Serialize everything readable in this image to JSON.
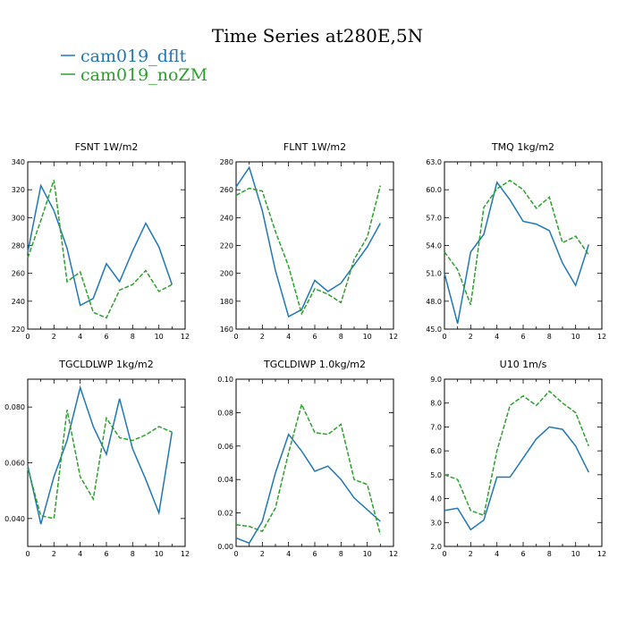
{
  "figure_title": "Time Series at280E,5N",
  "colors": {
    "dflt": "#1f77b4",
    "noZM": "#2ca02c"
  },
  "legend": [
    {
      "label": "cam019_dflt",
      "series": "dflt"
    },
    {
      "label": "cam019_noZM",
      "series": "noZM"
    }
  ],
  "chart_data": [
    {
      "type": "line",
      "title": "FSNT   1W/m2",
      "x": [
        0,
        1,
        2,
        3,
        4,
        5,
        6,
        7,
        8,
        9,
        10,
        11
      ],
      "xlim": [
        0,
        12
      ],
      "xticks": [
        0,
        2,
        4,
        6,
        8,
        10,
        12
      ],
      "ylim": [
        220,
        340
      ],
      "yticks": [
        220,
        240,
        260,
        280,
        300,
        320,
        340
      ],
      "ytick_labels": [
        "220",
        "240",
        "260",
        "280",
        "300",
        "320",
        "340"
      ],
      "series": [
        {
          "name": "cam019_dflt",
          "style": "solid",
          "color": "#1f77b4",
          "values": [
            275,
            323,
            305,
            278,
            237,
            242,
            267,
            254,
            276,
            296,
            279,
            252
          ]
        },
        {
          "name": "cam019_noZM",
          "style": "dashed",
          "color": "#2ca02c",
          "values": [
            271,
            298,
            327,
            254,
            261,
            232,
            228,
            248,
            252,
            262,
            247,
            252
          ]
        }
      ]
    },
    {
      "type": "line",
      "title": "FLNT   1W/m2",
      "x": [
        0,
        1,
        2,
        3,
        4,
        5,
        6,
        7,
        8,
        9,
        10,
        11
      ],
      "xlim": [
        0,
        12
      ],
      "xticks": [
        0,
        2,
        4,
        6,
        8,
        10,
        12
      ],
      "ylim": [
        160,
        280
      ],
      "yticks": [
        160,
        180,
        200,
        220,
        240,
        260,
        280
      ],
      "ytick_labels": [
        "160",
        "180",
        "200",
        "220",
        "240",
        "260",
        "280"
      ],
      "series": [
        {
          "name": "cam019_dflt",
          "style": "solid",
          "color": "#1f77b4",
          "values": [
            262,
            276,
            245,
            202,
            169,
            174,
            195,
            187,
            193,
            206,
            219,
            236
          ]
        },
        {
          "name": "cam019_noZM",
          "style": "dashed",
          "color": "#2ca02c",
          "values": [
            256,
            261,
            259,
            230,
            205,
            171,
            189,
            185,
            179,
            210,
            226,
            263
          ]
        }
      ]
    },
    {
      "type": "line",
      "title": "TMQ   1kg/m2",
      "x": [
        0,
        1,
        2,
        3,
        4,
        5,
        6,
        7,
        8,
        9,
        10,
        11
      ],
      "xlim": [
        0,
        12
      ],
      "xticks": [
        0,
        2,
        4,
        6,
        8,
        10,
        12
      ],
      "ylim": [
        45,
        63
      ],
      "yticks": [
        45,
        48,
        51,
        54,
        57,
        60,
        63
      ],
      "ytick_labels": [
        "45.0",
        "48.0",
        "51.0",
        "54.0",
        "57.0",
        "60.0",
        "63.0"
      ],
      "series": [
        {
          "name": "cam019_dflt",
          "style": "solid",
          "color": "#1f77b4",
          "values": [
            51.0,
            45.6,
            53.3,
            55.2,
            60.8,
            58.9,
            56.6,
            56.3,
            55.6,
            52.1,
            49.7,
            54.1
          ]
        },
        {
          "name": "cam019_noZM",
          "style": "dashed",
          "color": "#2ca02c",
          "values": [
            53.3,
            51.4,
            47.6,
            58.1,
            60.1,
            61.0,
            60.0,
            58.0,
            59.2,
            54.3,
            55.0,
            53.0
          ]
        }
      ]
    },
    {
      "type": "line",
      "title": "TGCLDLWP   1kg/m2",
      "x": [
        0,
        1,
        2,
        3,
        4,
        5,
        6,
        7,
        8,
        9,
        10,
        11
      ],
      "xlim": [
        0,
        12
      ],
      "xticks": [
        0,
        2,
        4,
        6,
        8,
        10,
        12
      ],
      "ylim": [
        0.03,
        0.09
      ],
      "yticks": [
        0.04,
        0.06,
        0.08
      ],
      "ytick_labels": [
        "0.040",
        "0.060",
        "0.080"
      ],
      "series": [
        {
          "name": "cam019_dflt",
          "style": "solid",
          "color": "#1f77b4",
          "values": [
            0.059,
            0.038,
            0.055,
            0.068,
            0.087,
            0.073,
            0.063,
            0.083,
            0.065,
            0.054,
            0.042,
            0.071
          ]
        },
        {
          "name": "cam019_noZM",
          "style": "dashed",
          "color": "#2ca02c",
          "values": [
            0.058,
            0.041,
            0.04,
            0.079,
            0.055,
            0.047,
            0.076,
            0.069,
            0.068,
            0.07,
            0.073,
            0.071
          ]
        }
      ]
    },
    {
      "type": "line",
      "title": "TGCLDIWP   1.0kg/m2",
      "x": [
        0,
        1,
        2,
        3,
        4,
        5,
        6,
        7,
        8,
        9,
        10,
        11
      ],
      "xlim": [
        0,
        12
      ],
      "xticks": [
        0,
        2,
        4,
        6,
        8,
        10,
        12
      ],
      "ylim": [
        0.0,
        0.1
      ],
      "yticks": [
        0.0,
        0.02,
        0.04,
        0.06,
        0.08,
        0.1
      ],
      "ytick_labels": [
        "0.00",
        "0.02",
        "0.04",
        "0.06",
        "0.08",
        "0.10"
      ],
      "series": [
        {
          "name": "cam019_dflt",
          "style": "solid",
          "color": "#1f77b4",
          "values": [
            0.005,
            0.002,
            0.015,
            0.044,
            0.067,
            0.057,
            0.045,
            0.048,
            0.04,
            0.029,
            0.022,
            0.015
          ]
        },
        {
          "name": "cam019_noZM",
          "style": "dashed",
          "color": "#2ca02c",
          "values": [
            0.013,
            0.012,
            0.009,
            0.023,
            0.056,
            0.085,
            0.068,
            0.067,
            0.073,
            0.04,
            0.037,
            0.007
          ]
        }
      ]
    },
    {
      "type": "line",
      "title": "U10   1m/s",
      "x": [
        0,
        1,
        2,
        3,
        4,
        5,
        6,
        7,
        8,
        9,
        10,
        11
      ],
      "xlim": [
        0,
        12
      ],
      "xticks": [
        0,
        2,
        4,
        6,
        8,
        10,
        12
      ],
      "ylim": [
        2.0,
        9.0
      ],
      "yticks": [
        2,
        3,
        4,
        5,
        6,
        7,
        8,
        9
      ],
      "ytick_labels": [
        "2.0",
        "3.0",
        "4.0",
        "5.0",
        "6.0",
        "7.0",
        "8.0",
        "9.0"
      ],
      "series": [
        {
          "name": "cam019_dflt",
          "style": "solid",
          "color": "#1f77b4",
          "values": [
            3.5,
            3.6,
            2.7,
            3.1,
            4.9,
            4.9,
            5.7,
            6.5,
            7.0,
            6.9,
            6.2,
            5.1
          ]
        },
        {
          "name": "cam019_noZM",
          "style": "dashed",
          "color": "#2ca02c",
          "values": [
            5.0,
            4.8,
            3.5,
            3.3,
            6.0,
            7.9,
            8.3,
            7.9,
            8.5,
            8.0,
            7.6,
            6.2
          ]
        }
      ]
    }
  ]
}
